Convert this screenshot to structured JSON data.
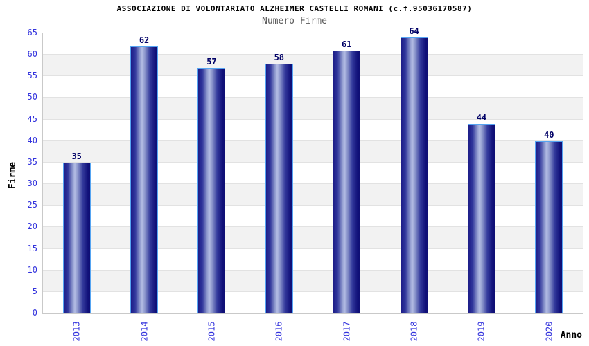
{
  "chart_data": {
    "type": "bar",
    "title": "ASSOCIAZIONE DI VOLONTARIATO ALZHEIMER CASTELLI ROMANI (c.f.95036170587)",
    "subtitle": "Numero Firme",
    "categories": [
      "2013",
      "2014",
      "2015",
      "2016",
      "2017",
      "2018",
      "2019",
      "2020"
    ],
    "values": [
      35,
      62,
      57,
      58,
      61,
      64,
      44,
      40
    ],
    "xlabel": "Anno",
    "ylabel": "Firme",
    "ylim": [
      0,
      65
    ],
    "ytick_step": 5,
    "yticks": [
      0,
      5,
      10,
      15,
      20,
      25,
      30,
      35,
      40,
      45,
      50,
      55,
      60,
      65
    ],
    "grid": true,
    "legend": "none",
    "colors": {
      "bar_dark": "#14148c",
      "bar_light": "#b4bde4",
      "bar_border": "#55a4f2",
      "axis_tick_text": "#3333dd",
      "value_label": "#000066",
      "band_even": "#ffffff",
      "band_odd": "#f2f2f2",
      "gridline": "#e2e2e2",
      "plot_border": "#c9c9c9",
      "title_text": "#000000",
      "subtitle_text": "#5a5a5a"
    }
  }
}
